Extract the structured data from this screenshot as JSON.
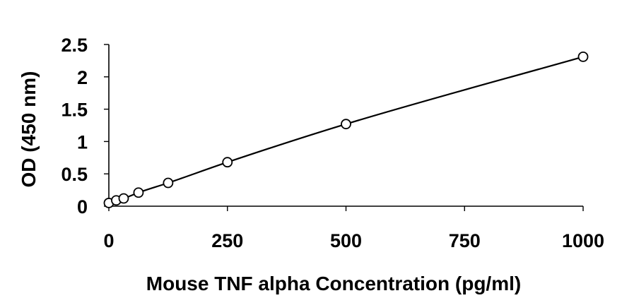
{
  "chart_data": {
    "type": "scatter",
    "title": "",
    "xlabel": "Mouse TNF alpha Concentration (pg/ml)",
    "ylabel": "OD (450 nm)",
    "xlim": [
      0,
      1000
    ],
    "ylim": [
      0,
      2.5
    ],
    "x_ticks": [
      "0",
      "250",
      "500",
      "750",
      "1000"
    ],
    "y_ticks": [
      "0",
      "0.5",
      "1",
      "1.5",
      "2",
      "2.5"
    ],
    "grid": false,
    "legend": "none",
    "series": [
      {
        "x": [
          0,
          15.6,
          31.25,
          62.5,
          125,
          250,
          500,
          1000
        ],
        "y": [
          0.05,
          0.09,
          0.12,
          0.21,
          0.36,
          0.68,
          1.27,
          2.31
        ],
        "marker": "open-circle",
        "trendline": "smooth-curve",
        "color": "#000000"
      }
    ]
  }
}
